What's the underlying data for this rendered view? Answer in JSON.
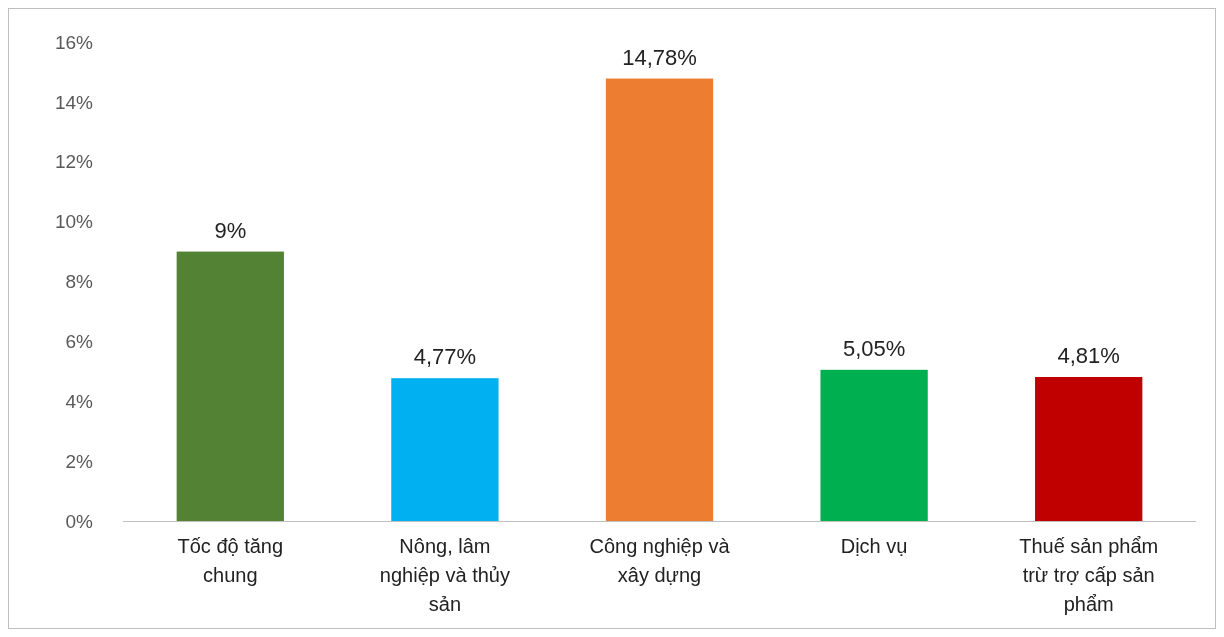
{
  "chart_data": {
    "type": "bar",
    "categories": [
      "Tốc độ tăng chung",
      "Nông, lâm nghiệp và thủy sản",
      "Công nghiệp và xây dựng",
      "Dịch vụ",
      "Thuế sản phẩm trừ trợ cấp sản phẩm"
    ],
    "values": [
      9,
      4.77,
      14.78,
      5.05,
      4.81
    ],
    "colors": [
      "#548235",
      "#00b0f0",
      "#ed7d31",
      "#00b050",
      "#c00000"
    ],
    "value_labels": [
      "9%",
      "4,77%",
      "14,78%",
      "5,05%",
      "4,81%"
    ],
    "ylim": [
      0,
      16
    ],
    "yticks": [
      {
        "value": 0,
        "label": "0%"
      },
      {
        "value": 2,
        "label": "2%"
      },
      {
        "value": 4,
        "label": "4%"
      },
      {
        "value": 6,
        "label": "6%"
      },
      {
        "value": 8,
        "label": "8%"
      },
      {
        "value": 10,
        "label": "10%"
      },
      {
        "value": 12,
        "label": "12%"
      },
      {
        "value": 14,
        "label": "14%"
      },
      {
        "value": 16,
        "label": "16%"
      }
    ],
    "grid": false
  }
}
